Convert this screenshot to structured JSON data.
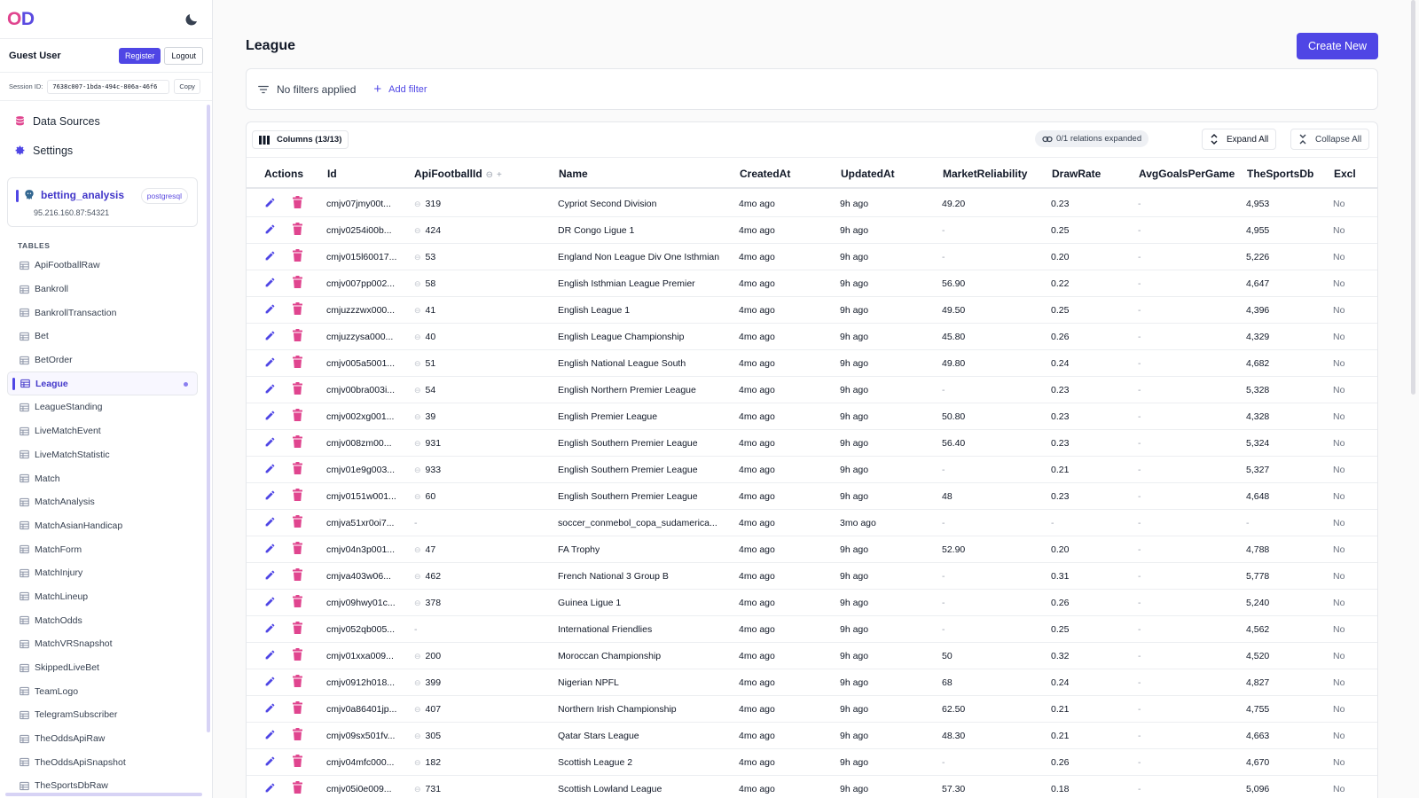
{
  "brand": {
    "letter1": "O",
    "letter2": "D"
  },
  "user": {
    "name": "Guest User",
    "register_label": "Register",
    "logout_label": "Logout"
  },
  "session": {
    "label": "Session ID:",
    "value": "7638c007-1bda-494c-806a-46f6",
    "copy_label": "Copy"
  },
  "nav": {
    "data_sources": "Data Sources",
    "settings": "Settings"
  },
  "db": {
    "name": "betting_analysis",
    "type": "postgresql",
    "host": "95.216.160.87:54321"
  },
  "tables_header": "TABLES",
  "tables": [
    "ApiFootballRaw",
    "Bankroll",
    "BankrollTransaction",
    "Bet",
    "BetOrder",
    "League",
    "LeagueStanding",
    "LiveMatchEvent",
    "LiveMatchStatistic",
    "Match",
    "MatchAnalysis",
    "MatchAsianHandicap",
    "MatchForm",
    "MatchInjury",
    "MatchLineup",
    "MatchOdds",
    "MatchVRSnapshot",
    "SkippedLiveBet",
    "TeamLogo",
    "TelegramSubscriber",
    "TheOddsApiRaw",
    "TheOddsApiSnapshot",
    "TheSportsDbRaw"
  ],
  "active_table": "League",
  "page": {
    "title": "League",
    "create_label": "Create New"
  },
  "filters": {
    "status": "No filters applied",
    "add_label": "Add filter"
  },
  "toolbar": {
    "columns_label": "Columns (13/13)",
    "relations_label": "0/1 relations expanded",
    "expand_label": "Expand All",
    "collapse_label": "Collapse All"
  },
  "columns": [
    "Actions",
    "Id",
    "ApiFootballId",
    "Name",
    "CreatedAt",
    "UpdatedAt",
    "MarketReliability",
    "DrawRate",
    "AvgGoalsPerGame",
    "TheSportsDb",
    "Excl"
  ],
  "rows": [
    [
      "cmjv07jmy00t...",
      "319",
      "Cypriot Second Division",
      "4mo ago",
      "9h ago",
      "49.20",
      "0.23",
      "-",
      "4,953",
      "No"
    ],
    [
      "cmjv0254i00b...",
      "424",
      "DR Congo Ligue 1",
      "4mo ago",
      "9h ago",
      "-",
      "0.25",
      "-",
      "4,955",
      "No"
    ],
    [
      "cmjv015l60017...",
      "53",
      "England Non League Div One Isthmian",
      "4mo ago",
      "9h ago",
      "-",
      "0.20",
      "-",
      "5,226",
      "No"
    ],
    [
      "cmjv007pp002...",
      "58",
      "English Isthmian League Premier",
      "4mo ago",
      "9h ago",
      "56.90",
      "0.22",
      "-",
      "4,647",
      "No"
    ],
    [
      "cmjuzzzwx000...",
      "41",
      "English League 1",
      "4mo ago",
      "9h ago",
      "49.50",
      "0.25",
      "-",
      "4,396",
      "No"
    ],
    [
      "cmjuzzysa000...",
      "40",
      "English League Championship",
      "4mo ago",
      "9h ago",
      "45.80",
      "0.26",
      "-",
      "4,329",
      "No"
    ],
    [
      "cmjv005a5001...",
      "51",
      "English National League South",
      "4mo ago",
      "9h ago",
      "49.80",
      "0.24",
      "-",
      "4,682",
      "No"
    ],
    [
      "cmjv00bra003i...",
      "54",
      "English Northern Premier League",
      "4mo ago",
      "9h ago",
      "-",
      "0.23",
      "-",
      "5,328",
      "No"
    ],
    [
      "cmjv002xg001...",
      "39",
      "English Premier League",
      "4mo ago",
      "9h ago",
      "50.80",
      "0.23",
      "-",
      "4,328",
      "No"
    ],
    [
      "cmjv008zm00...",
      "931",
      "English Southern Premier League",
      "4mo ago",
      "9h ago",
      "56.40",
      "0.23",
      "-",
      "5,324",
      "No"
    ],
    [
      "cmjv01e9g003...",
      "933",
      "English Southern Premier League",
      "4mo ago",
      "9h ago",
      "-",
      "0.21",
      "-",
      "5,327",
      "No"
    ],
    [
      "cmjv0151w001...",
      "60",
      "English Southern Premier League",
      "4mo ago",
      "9h ago",
      "48",
      "0.23",
      "-",
      "4,648",
      "No"
    ],
    [
      "cmjva51xr0oi7...",
      "-",
      "soccer_conmebol_copa_sudamerica...",
      "4mo ago",
      "3mo ago",
      "-",
      "-",
      "-",
      "-",
      "No"
    ],
    [
      "cmjv04n3p001...",
      "47",
      "FA Trophy",
      "4mo ago",
      "9h ago",
      "52.90",
      "0.20",
      "-",
      "4,788",
      "No"
    ],
    [
      "cmjva403w06...",
      "462",
      "French National 3 Group B",
      "4mo ago",
      "9h ago",
      "-",
      "0.31",
      "-",
      "5,778",
      "No"
    ],
    [
      "cmjv09hwy01c...",
      "378",
      "Guinea Ligue 1",
      "4mo ago",
      "9h ago",
      "-",
      "0.26",
      "-",
      "5,240",
      "No"
    ],
    [
      "cmjv052qb005...",
      "-",
      "International Friendlies",
      "4mo ago",
      "9h ago",
      "-",
      "0.25",
      "-",
      "4,562",
      "No"
    ],
    [
      "cmjv01xxa009...",
      "200",
      "Moroccan Championship",
      "4mo ago",
      "9h ago",
      "50",
      "0.32",
      "-",
      "4,520",
      "No"
    ],
    [
      "cmjv0912h018...",
      "399",
      "Nigerian NPFL",
      "4mo ago",
      "9h ago",
      "68",
      "0.24",
      "-",
      "4,827",
      "No"
    ],
    [
      "cmjv0a86401jp...",
      "407",
      "Northern Irish Championship",
      "4mo ago",
      "9h ago",
      "62.50",
      "0.21",
      "-",
      "4,755",
      "No"
    ],
    [
      "cmjv09sx501fv...",
      "305",
      "Qatar Stars League",
      "4mo ago",
      "9h ago",
      "48.30",
      "0.21",
      "-",
      "4,663",
      "No"
    ],
    [
      "cmjv04mfc000...",
      "182",
      "Scottish League 2",
      "4mo ago",
      "9h ago",
      "-",
      "0.26",
      "-",
      "4,670",
      "No"
    ],
    [
      "cmjv05i0e009...",
      "731",
      "Scottish Lowland League",
      "4mo ago",
      "9h ago",
      "57.30",
      "0.18",
      "-",
      "5,096",
      "No"
    ]
  ],
  "colors": {
    "accent": "#4f46e5",
    "delete": "#e0458f"
  },
  "icons": {
    "edit": "pencil-icon",
    "delete": "trash-icon",
    "link": "link-icon"
  }
}
